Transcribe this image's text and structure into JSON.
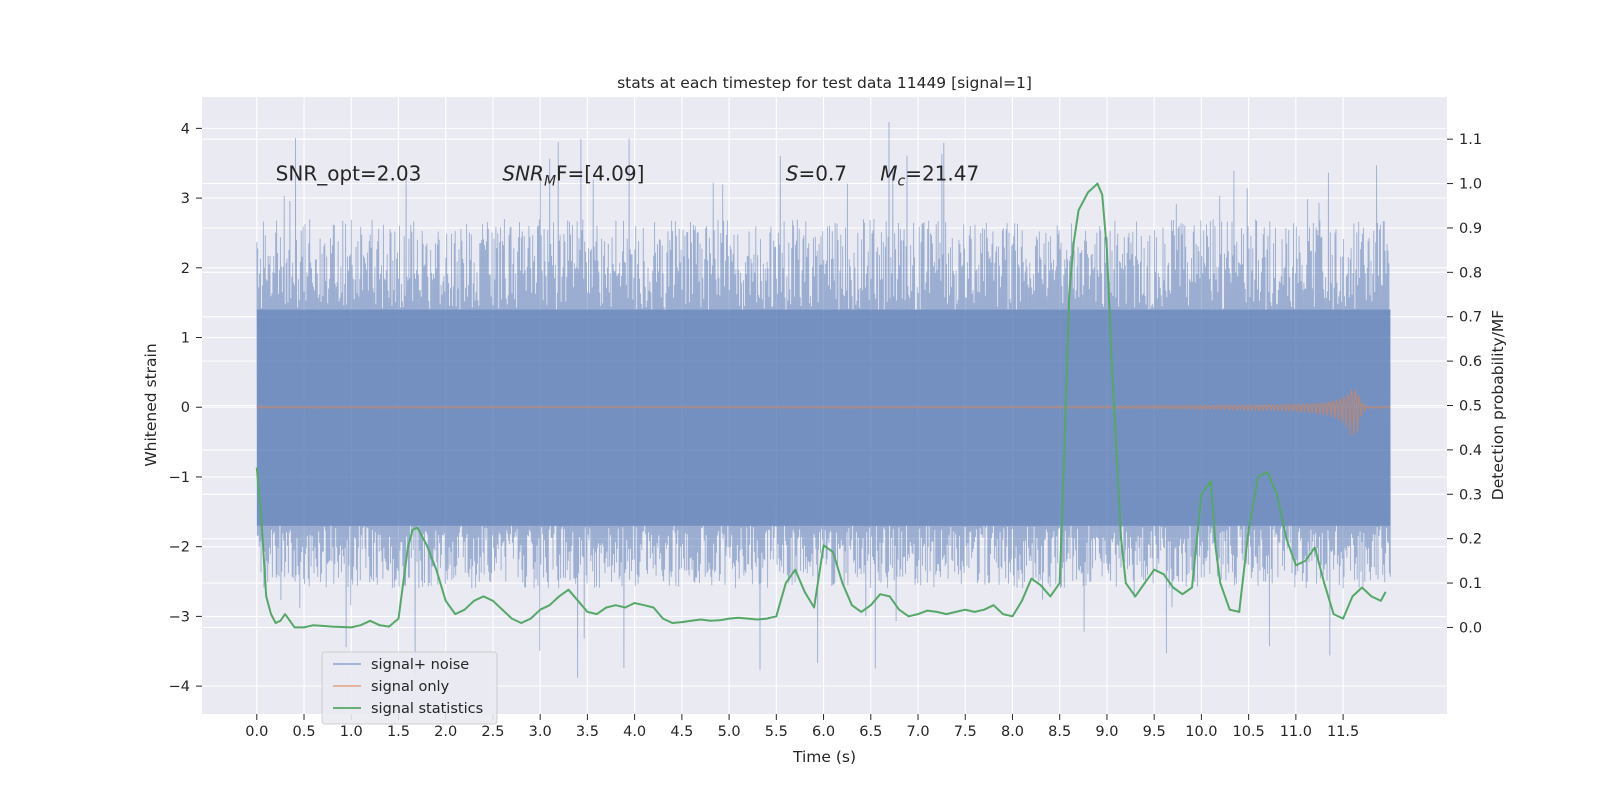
{
  "chart_data": {
    "type": "line",
    "title": "stats at each timestep for test data 11449 [signal=1]",
    "xlabel": "Time (s)",
    "ylabel_left": "Whitened strain",
    "ylabel_right": "Detection probability/MF",
    "xlim": [
      -0.58,
      12.6
    ],
    "ylim_left": [
      -4.4,
      4.45
    ],
    "ylim_right": [
      -0.195,
      1.195
    ],
    "x_ticks": [
      "0.0",
      "0.5",
      "1.0",
      "1.5",
      "2.0",
      "2.5",
      "3.0",
      "3.5",
      "4.0",
      "4.5",
      "5.0",
      "5.5",
      "6.0",
      "6.5",
      "7.0",
      "7.5",
      "8.0",
      "8.5",
      "9.0",
      "9.5",
      "10.0",
      "10.5",
      "11.0",
      "11.5"
    ],
    "y_ticks_left": [
      "−4",
      "−3",
      "−2",
      "−1",
      "0",
      "1",
      "2",
      "3",
      "4"
    ],
    "y_ticks_right": [
      "0.0",
      "0.1",
      "0.2",
      "0.3",
      "0.4",
      "0.5",
      "0.6",
      "0.7",
      "0.8",
      "0.9",
      "1.0",
      "1.1"
    ],
    "grid": true,
    "legend_position": "lower-left",
    "annotations": [
      {
        "name": "snr-opt-annotation",
        "prefix": "SNR_opt=2.03",
        "sub": "",
        "suffix": ""
      },
      {
        "name": "snr-mf-annotation",
        "prefix": "SNR",
        "sub": "M",
        "suffix": "F=[4.09]"
      },
      {
        "name": "s-annotation",
        "prefix": "S",
        "sub": "",
        "suffix": "=0.7"
      },
      {
        "name": "mc-annotation",
        "prefix": "M",
        "sub": "c",
        "suffix": "=21.47"
      }
    ],
    "series": [
      {
        "name": "signal+ noise",
        "color": "#4c72b0",
        "kind": "noise",
        "x_range": [
          0,
          12.0
        ],
        "typical_range": [
          -1.7,
          1.4
        ],
        "extreme_range": [
          -3.9,
          4.1
        ]
      },
      {
        "name": "signal only",
        "color": "#dd8452",
        "kind": "chirp",
        "x_range": [
          0,
          12.0
        ],
        "peak_time": 11.65,
        "peak_amplitude": 0.4
      },
      {
        "name": "signal statistics",
        "color": "#55a868",
        "kind": "stat",
        "x": [
          0.0,
          0.05,
          0.1,
          0.15,
          0.2,
          0.25,
          0.3,
          0.4,
          0.5,
          0.6,
          0.8,
          1.0,
          1.1,
          1.2,
          1.3,
          1.4,
          1.5,
          1.55,
          1.6,
          1.65,
          1.7,
          1.75,
          1.8,
          1.9,
          2.0,
          2.1,
          2.2,
          2.3,
          2.4,
          2.5,
          2.6,
          2.7,
          2.8,
          2.9,
          3.0,
          3.1,
          3.2,
          3.3,
          3.4,
          3.5,
          3.6,
          3.7,
          3.8,
          3.9,
          4.0,
          4.1,
          4.2,
          4.3,
          4.4,
          4.5,
          4.6,
          4.7,
          4.8,
          4.9,
          5.0,
          5.1,
          5.2,
          5.3,
          5.4,
          5.5,
          5.6,
          5.7,
          5.8,
          5.9,
          6.0,
          6.1,
          6.2,
          6.3,
          6.4,
          6.5,
          6.6,
          6.7,
          6.8,
          6.9,
          7.0,
          7.1,
          7.2,
          7.3,
          7.4,
          7.5,
          7.6,
          7.7,
          7.8,
          7.9,
          8.0,
          8.1,
          8.2,
          8.3,
          8.4,
          8.5,
          8.55,
          8.6,
          8.65,
          8.7,
          8.8,
          8.9,
          8.95,
          9.0,
          9.05,
          9.1,
          9.15,
          9.2,
          9.3,
          9.4,
          9.5,
          9.6,
          9.7,
          9.8,
          9.9,
          10.0,
          10.1,
          10.15,
          10.2,
          10.3,
          10.4,
          10.5,
          10.6,
          10.7,
          10.8,
          10.9,
          11.0,
          11.1,
          11.2,
          11.3,
          11.4,
          11.5,
          11.6,
          11.7,
          11.8,
          11.9,
          11.95
        ],
        "values": [
          0.36,
          0.24,
          0.07,
          0.03,
          0.01,
          0.015,
          0.03,
          0.0,
          0.0,
          0.005,
          0.002,
          0.0,
          0.005,
          0.015,
          0.005,
          0.002,
          0.02,
          0.1,
          0.18,
          0.22,
          0.225,
          0.205,
          0.185,
          0.13,
          0.06,
          0.03,
          0.04,
          0.06,
          0.07,
          0.06,
          0.04,
          0.02,
          0.01,
          0.02,
          0.04,
          0.05,
          0.07,
          0.085,
          0.06,
          0.035,
          0.03,
          0.045,
          0.05,
          0.045,
          0.055,
          0.05,
          0.045,
          0.02,
          0.01,
          0.012,
          0.015,
          0.018,
          0.015,
          0.016,
          0.02,
          0.022,
          0.02,
          0.018,
          0.02,
          0.025,
          0.1,
          0.13,
          0.08,
          0.045,
          0.185,
          0.17,
          0.1,
          0.05,
          0.035,
          0.05,
          0.075,
          0.07,
          0.04,
          0.025,
          0.03,
          0.038,
          0.035,
          0.03,
          0.035,
          0.04,
          0.035,
          0.04,
          0.05,
          0.03,
          0.025,
          0.06,
          0.11,
          0.095,
          0.07,
          0.1,
          0.4,
          0.75,
          0.87,
          0.94,
          0.98,
          1.0,
          0.975,
          0.85,
          0.6,
          0.4,
          0.2,
          0.1,
          0.07,
          0.1,
          0.13,
          0.12,
          0.09,
          0.075,
          0.09,
          0.3,
          0.33,
          0.18,
          0.1,
          0.04,
          0.035,
          0.22,
          0.34,
          0.35,
          0.3,
          0.2,
          0.14,
          0.15,
          0.18,
          0.1,
          0.03,
          0.02,
          0.07,
          0.09,
          0.07,
          0.06,
          0.08
        ]
      }
    ]
  }
}
